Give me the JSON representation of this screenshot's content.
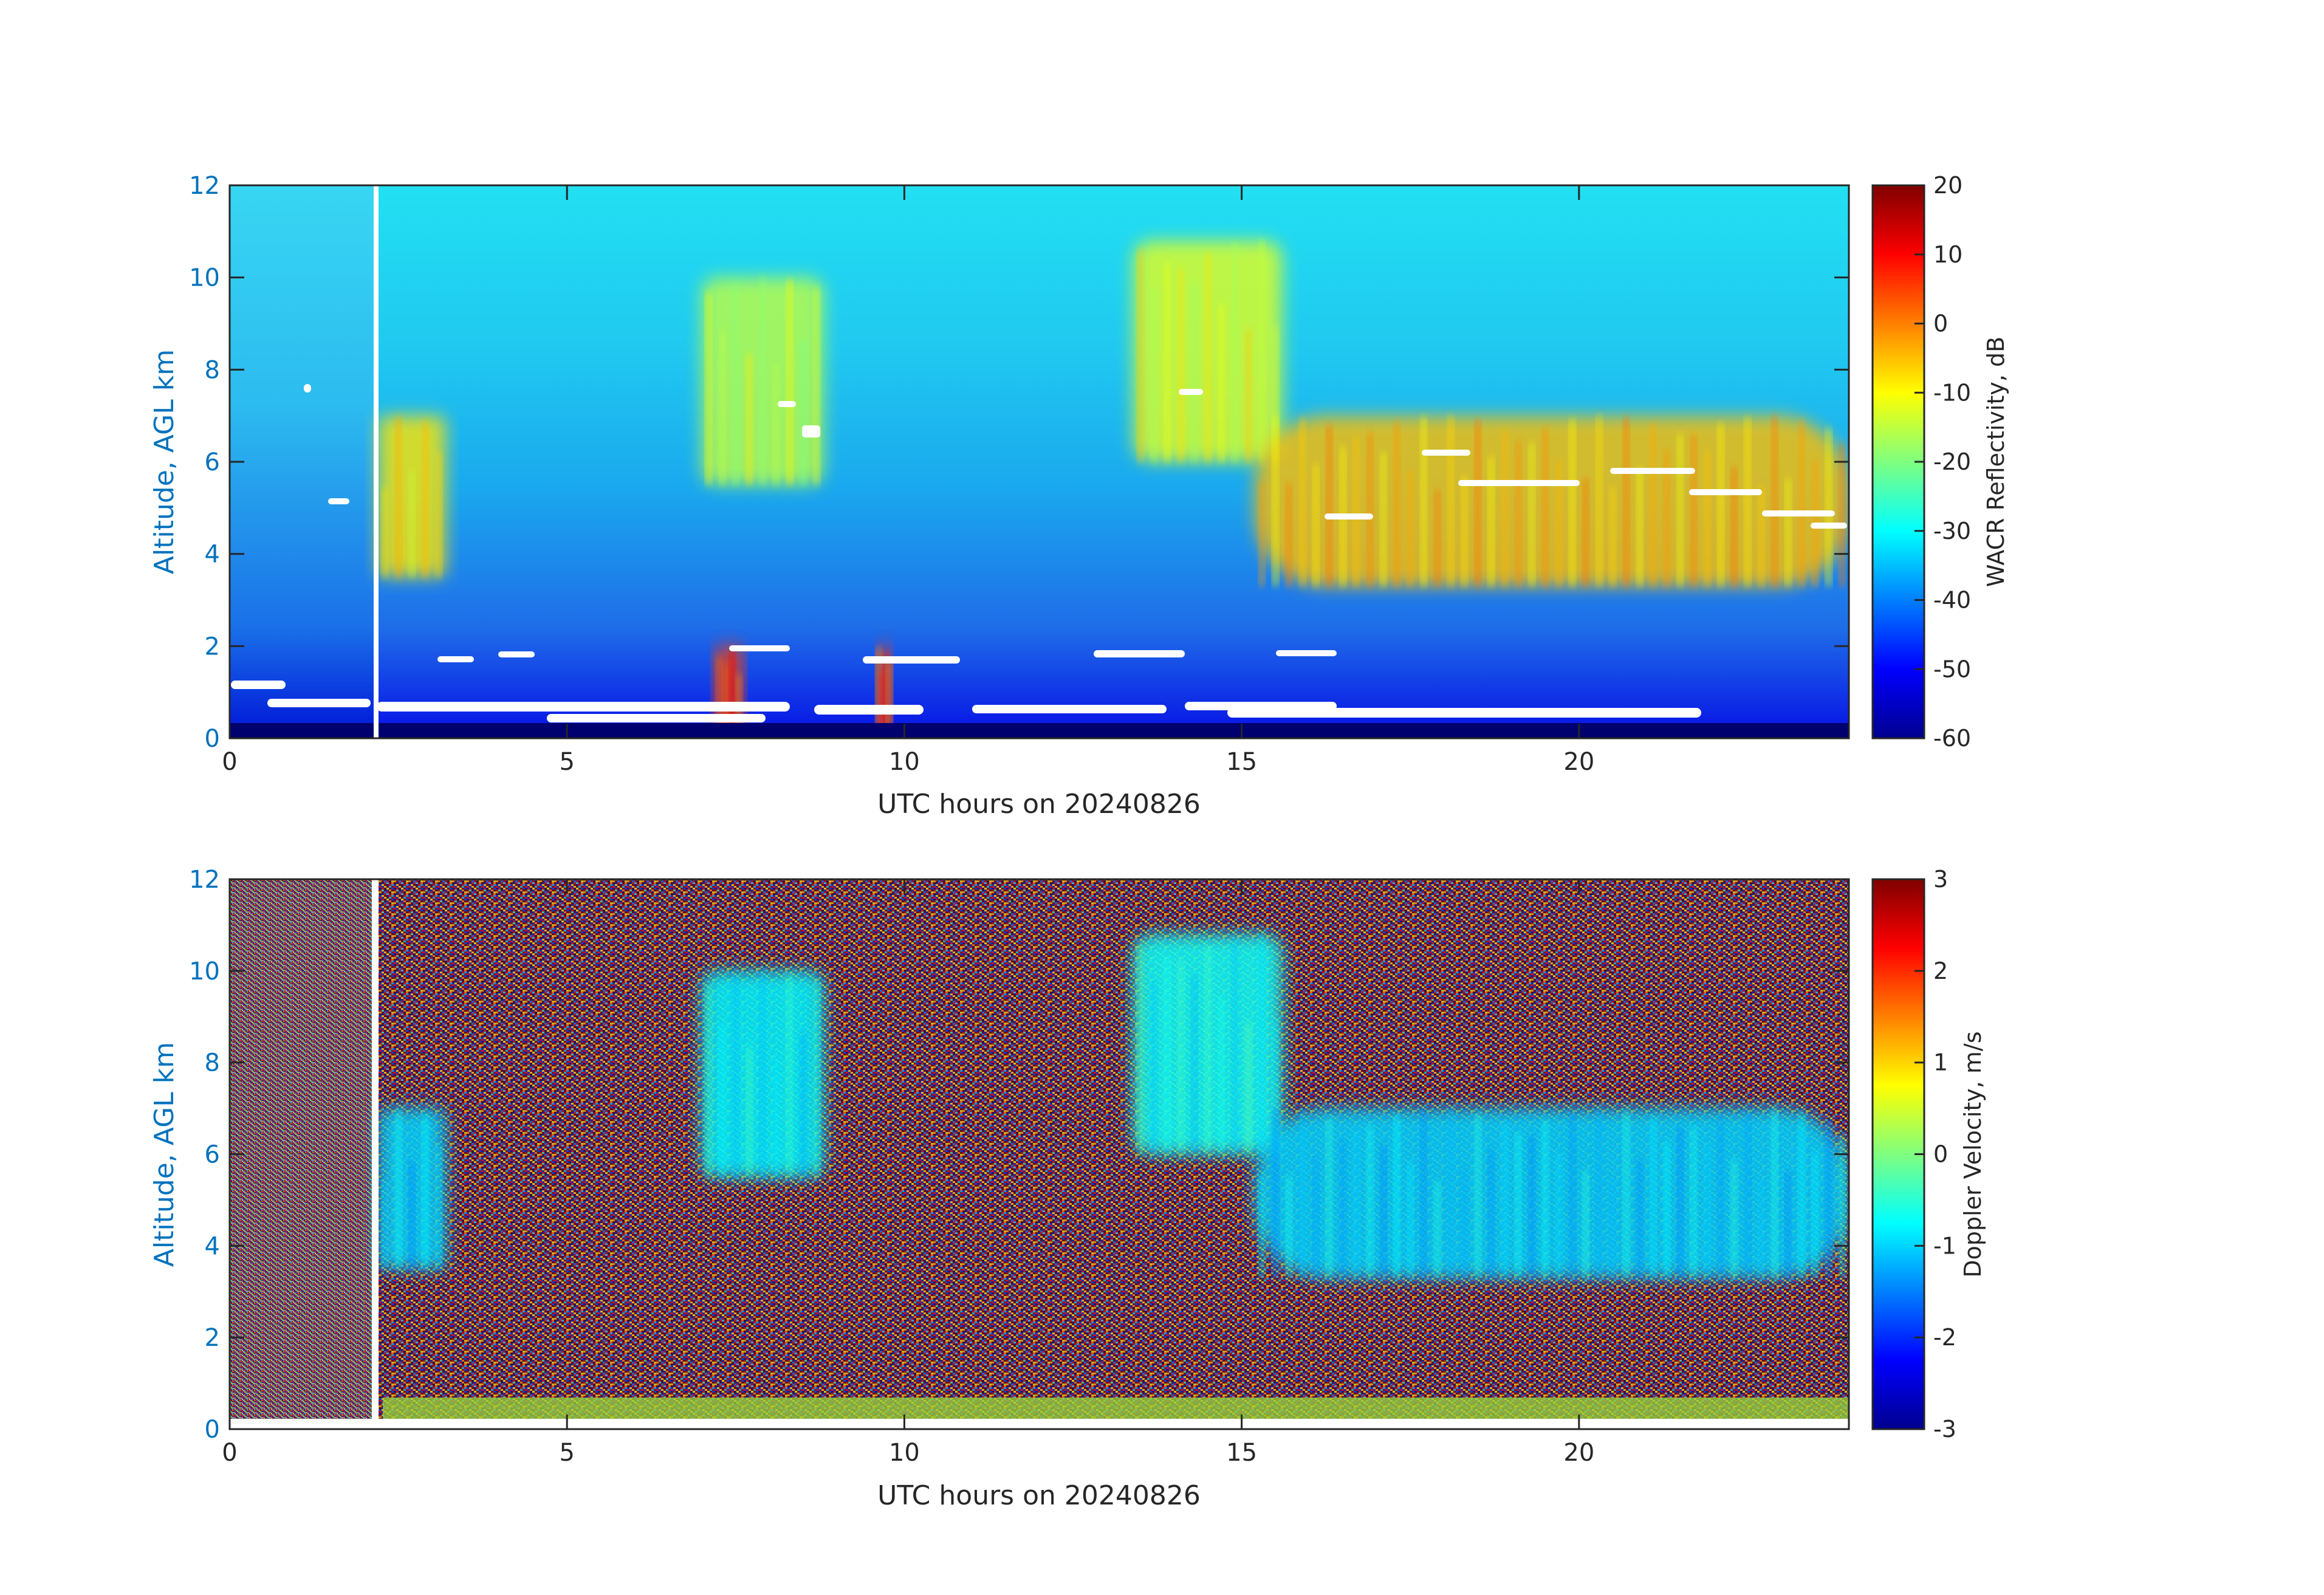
{
  "chart_data": [
    {
      "type": "heatmap",
      "panel": "reflectivity",
      "xlabel": "UTC hours on 20240826",
      "ylabel": "Altitude, AGL km",
      "colorbar_label": "WACR Reflectivity, dB",
      "xlim": [
        0,
        24
      ],
      "ylim": [
        0,
        12
      ],
      "clim": [
        -60,
        20
      ],
      "x_ticks": [
        "0",
        "5",
        "10",
        "15",
        "20"
      ],
      "y_ticks": [
        "0",
        "2",
        "4",
        "6",
        "8",
        "10",
        "12"
      ],
      "colorbar_ticks": [
        "-60",
        "-50",
        "-40",
        "-30",
        "-20",
        "-10",
        "0",
        "10",
        "20"
      ],
      "colormap": "jet",
      "data_gap_hours": [
        2.1,
        2.2
      ],
      "features": [
        {
          "x": [
            2.2,
            3.2
          ],
          "y": [
            3.5,
            7.0
          ],
          "value": -8
        },
        {
          "x": [
            7.0,
            8.8
          ],
          "y": [
            5.5,
            10.0
          ],
          "value": -15
        },
        {
          "x": [
            13.4,
            15.6
          ],
          "y": [
            6.0,
            10.8
          ],
          "value": -12
        },
        {
          "x": [
            15.2,
            24.0
          ],
          "y": [
            3.3,
            7.0
          ],
          "value": -5
        },
        {
          "x": [
            7.2,
            7.6
          ],
          "y": [
            0.0,
            2.0
          ],
          "value": 5
        },
        {
          "x": [
            9.6,
            9.8
          ],
          "y": [
            0.0,
            2.0
          ],
          "value": 5
        }
      ],
      "cloud_base_markers": "white dots near 0.3-1.8 km and along cloud layer bases"
    },
    {
      "type": "heatmap",
      "panel": "doppler_velocity",
      "xlabel": "UTC hours on 20240826",
      "ylabel": "Altitude, AGL km",
      "colorbar_label": "Doppler Velocity, m/s",
      "xlim": [
        0,
        24
      ],
      "ylim": [
        0,
        12
      ],
      "clim": [
        -3,
        3
      ],
      "x_ticks": [
        "0",
        "5",
        "10",
        "15",
        "20"
      ],
      "y_ticks": [
        "0",
        "2",
        "4",
        "6",
        "8",
        "10",
        "12"
      ],
      "colorbar_ticks": [
        "-3",
        "-2",
        "-1",
        "0",
        "1",
        "2",
        "3"
      ],
      "colormap": "jet",
      "data_gap_hours": [
        2.1,
        2.2
      ],
      "features": [
        {
          "x": [
            2.2,
            3.2
          ],
          "y": [
            3.5,
            7.0
          ],
          "value": -1.0
        },
        {
          "x": [
            7.0,
            8.8
          ],
          "y": [
            5.5,
            10.0
          ],
          "value": -0.8
        },
        {
          "x": [
            13.4,
            15.6
          ],
          "y": [
            6.0,
            10.8
          ],
          "value": -0.7
        },
        {
          "x": [
            15.2,
            24.0
          ],
          "y": [
            3.3,
            7.0
          ],
          "value": -1.0
        }
      ],
      "background": "random noise"
    }
  ]
}
